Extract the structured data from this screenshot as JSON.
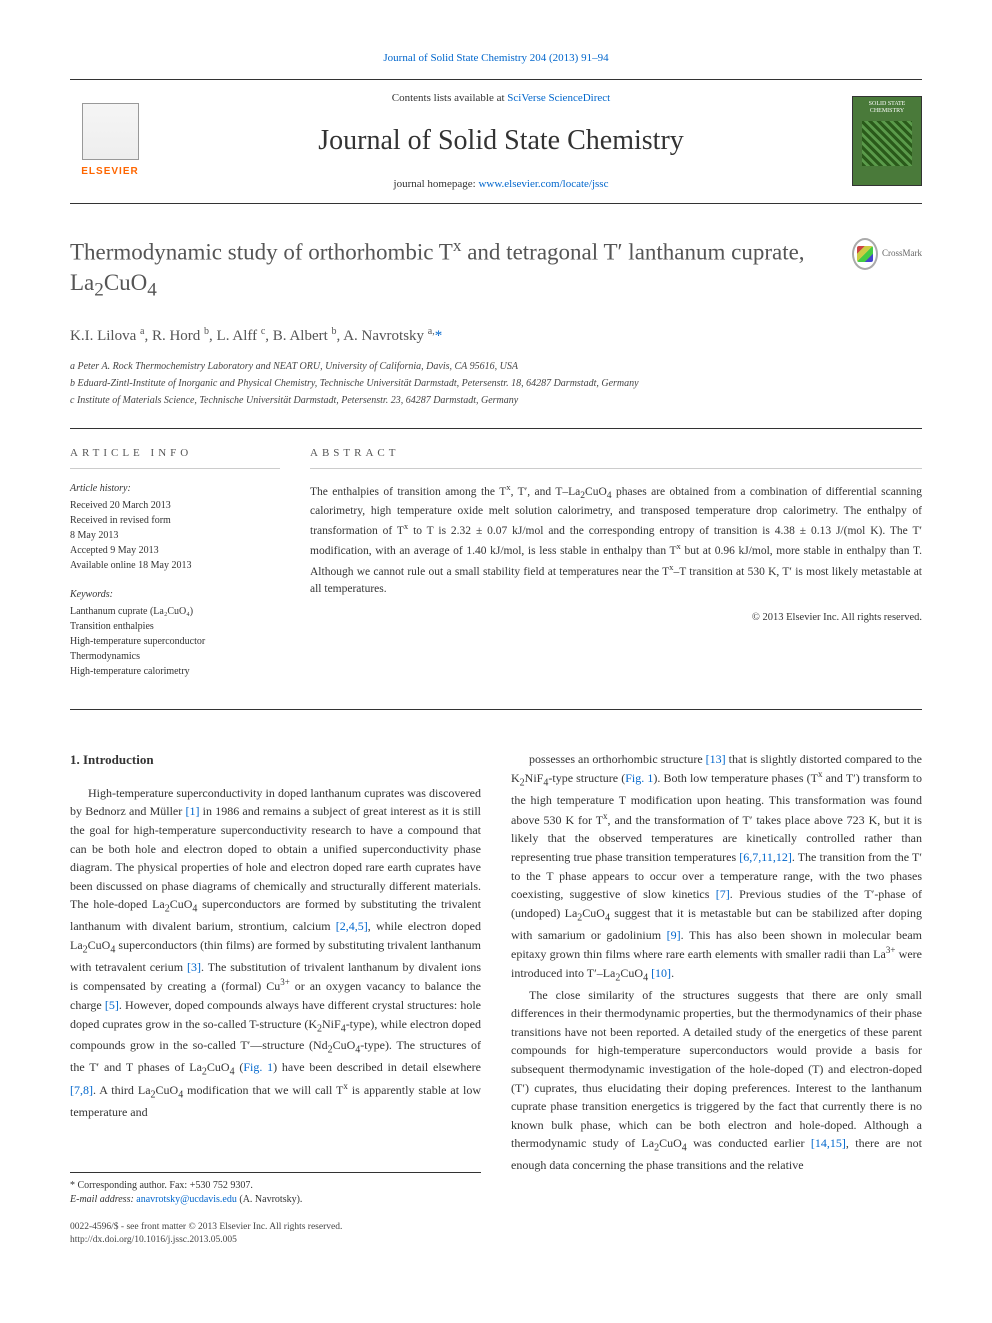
{
  "header": {
    "citation_link": "Journal of Solid State Chemistry 204 (2013) 91–94",
    "contents_prefix": "Contents lists available at ",
    "contents_link": "SciVerse ScienceDirect",
    "journal_title": "Journal of Solid State Chemistry",
    "homepage_prefix": "journal homepage: ",
    "homepage_link": "www.elsevier.com/locate/jssc",
    "elsevier": "ELSEVIER",
    "cover_text": "SOLID STATE CHEMISTRY"
  },
  "article": {
    "title_html": "Thermodynamic study of orthorhombic T<sup>x</sup> and tetragonal T′ lanthanum cuprate, La<sub>2</sub>CuO<sub>4</sub>",
    "crossmark": "CrossMark",
    "authors_html": "K.I. Lilova <sup>a</sup>, R. Hord <sup>b</sup>, L. Alff <sup>c</sup>, B. Albert <sup>b</sup>, A. Navrotsky <sup>a,</sup><a>*</a>",
    "affiliations": [
      "a Peter A. Rock Thermochemistry Laboratory and NEAT ORU, University of California, Davis, CA 95616, USA",
      "b Eduard-Zintl-Institute of Inorganic and Physical Chemistry, Technische Universität Darmstadt, Petersenstr. 18, 64287 Darmstadt, Germany",
      "c Institute of Materials Science, Technische Universität Darmstadt, Petersenstr. 23, 64287 Darmstadt, Germany"
    ]
  },
  "info": {
    "section_head": "ARTICLE INFO",
    "history_label": "Article history:",
    "history": [
      "Received 20 March 2013",
      "Received in revised form",
      "8 May 2013",
      "Accepted 9 May 2013",
      "Available online 18 May 2013"
    ],
    "keywords_label": "Keywords:",
    "keywords": [
      "Lanthanum cuprate (La₂CuO₄)",
      "Transition enthalpies",
      "High-temperature superconductor",
      "Thermodynamics",
      "High-temperature calorimetry"
    ]
  },
  "abstract": {
    "section_head": "ABSTRACT",
    "text_html": "The enthalpies of transition among the T<sup>x</sup>, T′, and T–La<sub>2</sub>CuO<sub>4</sub> phases are obtained from a combination of differential scanning calorimetry, high temperature oxide melt solution calorimetry, and transposed temperature drop calorimetry. The enthalpy of transformation of T<sup>x</sup> to T is 2.32 ± 0.07 kJ/mol and the corresponding entropy of transition is 4.38 ± 0.13 J/(mol K). The T′ modification, with an average of 1.40 kJ/mol, is less stable in enthalpy than T<sup>x</sup> but at 0.96 kJ/mol, more stable in enthalpy than T. Although we cannot rule out a small stability field at temperatures near the T<sup>x</sup>–T transition at 530 K, T′ is most likely metastable at all temperatures.",
    "copyright": "© 2013 Elsevier Inc. All rights reserved."
  },
  "body": {
    "heading": "1. Introduction",
    "para1_html": "High-temperature superconductivity in doped lanthanum cuprates was discovered by Bednorz and Müller <a>[1]</a> in 1986 and remains a subject of great interest as it is still the goal for high-temperature superconductivity research to have a compound that can be both hole and electron doped to obtain a unified superconductivity phase diagram. The physical properties of hole and electron doped rare earth cuprates have been discussed on phase diagrams of chemically and structurally different materials. The hole-doped La<sub>2</sub>CuO<sub>4</sub> superconductors are formed by substituting the trivalent lanthanum with divalent barium, strontium, calcium <a>[2,4,5]</a>, while electron doped La<sub>2</sub>CuO<sub>4</sub> superconductors (thin films) are formed by substituting trivalent lanthanum with tetravalent cerium <a>[3]</a>. The substitution of trivalent lanthanum by divalent ions is compensated by creating a (formal) Cu<sup>3+</sup> or an oxygen vacancy to balance the charge <a>[5]</a>. However, doped compounds always have different crystal structures: hole doped cuprates grow in the so-called T-structure (K<sub>2</sub>NiF<sub>4</sub>-type), while electron doped compounds grow in the so-called T′—structure (Nd<sub>2</sub>CuO<sub>4</sub>-type). The structures of the T′ and T phases of La<sub>2</sub>CuO<sub>4</sub> (<a>Fig. 1</a>) have been described in detail elsewhere <a>[7,8]</a>. A third La<sub>2</sub>CuO<sub>4</sub> modification that we will call T<sup>x</sup> is apparently stable at low temperature and",
    "para2_html": "possesses an orthorhombic structure <a>[13]</a> that is slightly distorted compared to the K<sub>2</sub>NiF<sub>4</sub>-type structure (<a>Fig. 1</a>). Both low temperature phases (T<sup>x</sup> and T′) transform to the high temperature T modification upon heating. This transformation was found above 530 K for T<sup>x</sup>, and the transformation of T′ takes place above 723 K, but it is likely that the observed temperatures are kinetically controlled rather than representing true phase transition temperatures <a>[6,7,11,12]</a>. The transition from the T′ to the T phase appears to occur over a temperature range, with the two phases coexisting, suggestive of slow kinetics <a>[7]</a>. Previous studies of the T′-phase of (undoped) La<sub>2</sub>CuO<sub>4</sub> suggest that it is metastable but can be stabilized after doping with samarium or gadolinium <a>[9]</a>. This has also been shown in molecular beam epitaxy grown thin films where rare earth elements with smaller radii than La<sup>3+</sup> were introduced into T′–La<sub>2</sub>CuO<sub>4</sub> <a>[10]</a>.",
    "para3_html": "The close similarity of the structures suggests that there are only small differences in their thermodynamic properties, but the thermodynamics of their phase transitions have not been reported. A detailed study of the energetics of these parent compounds for high-temperature superconductors would provide a basis for subsequent thermodynamic investigation of the hole-doped (T) and electron-doped (T′) cuprates, thus elucidating their doping preferences. Interest to the lanthanum cuprate phase transition energetics is triggered by the fact that currently there is no known bulk phase, which can be both electron and hole-doped. Although a thermodynamic study of La<sub>2</sub>CuO<sub>4</sub> was conducted earlier <a>[14,15]</a>, there are not enough data concerning the phase transitions and the relative"
  },
  "footnote": {
    "corr": "* Corresponding author. Fax: +530 752 9307.",
    "email_label": "E-mail address: ",
    "email": "anavrotsky@ucdavis.edu",
    "email_suffix": " (A. Navrotsky).",
    "issn": "0022-4596/$ - see front matter © 2013 Elsevier Inc. All rights reserved.",
    "doi": "http://dx.doi.org/10.1016/j.jssc.2013.05.005"
  }
}
